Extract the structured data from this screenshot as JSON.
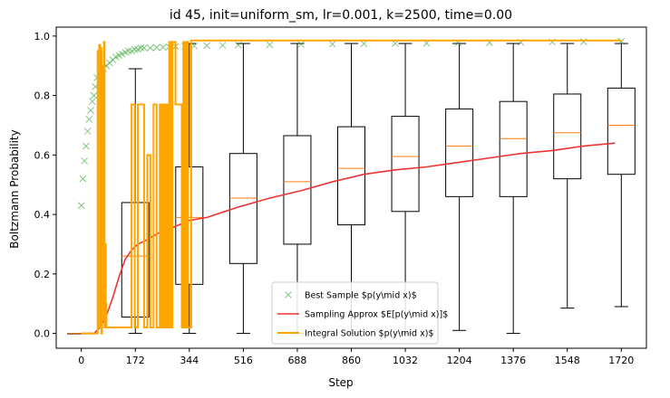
{
  "chart_data": {
    "type": "box",
    "title": "id 45, init=uniform_sm, lr=0.001, k=2500, time=0.00",
    "xlabel": "Step",
    "ylabel": "Boltzmann Probability",
    "xlim": [
      -80,
      1800
    ],
    "ylim": [
      -0.05,
      1.03
    ],
    "xticks": [
      0,
      172,
      344,
      516,
      688,
      860,
      1032,
      1204,
      1376,
      1548,
      1720
    ],
    "xtick_labels": [
      "0",
      "172",
      "344",
      "516",
      "688",
      "860",
      "1032",
      "1204",
      "1376",
      "1548",
      "1720"
    ],
    "yticks": [
      0.0,
      0.2,
      0.4,
      0.6,
      0.8,
      1.0
    ],
    "ytick_labels": [
      "0.0",
      "0.2",
      "0.4",
      "0.6",
      "0.8",
      "1.0"
    ],
    "grid": false,
    "legend_placement": "lower-center",
    "boxes": [
      {
        "x": 0,
        "whislo": 0.0,
        "q1": 0.0,
        "med": 0.0,
        "q3": 0.0,
        "whishi": 0.0
      },
      {
        "x": 172,
        "whislo": 0.0,
        "q1": 0.055,
        "med": 0.26,
        "q3": 0.44,
        "whishi": 0.89
      },
      {
        "x": 344,
        "whislo": 0.0,
        "q1": 0.165,
        "med": 0.39,
        "q3": 0.56,
        "whishi": 0.975
      },
      {
        "x": 516,
        "whislo": 0.0,
        "q1": 0.235,
        "med": 0.455,
        "q3": 0.605,
        "whishi": 0.975
      },
      {
        "x": 688,
        "whislo": 0.0,
        "q1": 0.3,
        "med": 0.51,
        "q3": 0.665,
        "whishi": 0.975
      },
      {
        "x": 860,
        "whislo": 0.0,
        "q1": 0.365,
        "med": 0.555,
        "q3": 0.695,
        "whishi": 0.975
      },
      {
        "x": 1032,
        "whislo": 0.0,
        "q1": 0.41,
        "med": 0.595,
        "q3": 0.73,
        "whishi": 0.975
      },
      {
        "x": 1204,
        "whislo": 0.01,
        "q1": 0.46,
        "med": 0.63,
        "q3": 0.755,
        "whishi": 0.975
      },
      {
        "x": 1376,
        "whislo": 0.0,
        "q1": 0.46,
        "med": 0.655,
        "q3": 0.78,
        "whishi": 0.975
      },
      {
        "x": 1548,
        "whislo": 0.085,
        "q1": 0.52,
        "med": 0.675,
        "q3": 0.805,
        "whishi": 0.975
      },
      {
        "x": 1720,
        "whislo": 0.09,
        "q1": 0.535,
        "med": 0.7,
        "q3": 0.825,
        "whishi": 0.975
      }
    ],
    "box_colors": {
      "box": "#000000",
      "median": "#ff7f0e"
    },
    "series": [
      {
        "name": "Best Sample $p(y\\mid x)$",
        "kind": "scatter",
        "marker": "x",
        "color": "#2ca02c",
        "x": [
          0,
          5,
          10,
          15,
          20,
          25,
          30,
          35,
          40,
          45,
          50,
          60,
          70,
          80,
          90,
          100,
          110,
          120,
          130,
          140,
          150,
          160,
          170,
          180,
          190,
          200,
          220,
          240,
          260,
          280,
          300,
          330,
          360,
          400,
          450,
          500,
          600,
          700,
          800,
          900,
          1000,
          1100,
          1200,
          1300,
          1400,
          1500,
          1600,
          1720
        ],
        "y": [
          0.43,
          0.52,
          0.58,
          0.63,
          0.68,
          0.72,
          0.75,
          0.78,
          0.8,
          0.83,
          0.86,
          0.88,
          0.89,
          0.9,
          0.91,
          0.92,
          0.93,
          0.935,
          0.94,
          0.945,
          0.95,
          0.95,
          0.955,
          0.955,
          0.96,
          0.96,
          0.96,
          0.962,
          0.962,
          0.964,
          0.965,
          0.966,
          0.967,
          0.968,
          0.969,
          0.97,
          0.971,
          0.972,
          0.973,
          0.974,
          0.975,
          0.976,
          0.977,
          0.978,
          0.979,
          0.98,
          0.981,
          0.982
        ]
      },
      {
        "name": "Sampling Approx $E[p(y\\mid x)]$",
        "kind": "line",
        "color": "#ee3333",
        "x": [
          0,
          40,
          60,
          80,
          100,
          120,
          140,
          160,
          180,
          200,
          250,
          300,
          344,
          400,
          500,
          600,
          700,
          800,
          900,
          1000,
          1100,
          1200,
          1300,
          1400,
          1500,
          1600,
          1700
        ],
        "y": [
          0.0,
          0.0,
          0.02,
          0.06,
          0.12,
          0.19,
          0.25,
          0.28,
          0.3,
          0.31,
          0.34,
          0.36,
          0.38,
          0.39,
          0.425,
          0.455,
          0.48,
          0.51,
          0.535,
          0.55,
          0.56,
          0.575,
          0.59,
          0.605,
          0.615,
          0.63,
          0.64
        ]
      },
      {
        "name": "Integral Solution $p(y\\mid x)$",
        "kind": "step",
        "color": "#ffa500",
        "x": [
          0,
          50,
          52,
          55,
          57,
          60,
          62,
          64,
          66,
          70,
          72,
          74,
          76,
          78,
          80,
          90,
          100,
          110,
          120,
          130,
          140,
          150,
          160,
          170,
          180,
          190,
          200,
          210,
          220,
          230,
          240,
          250,
          255,
          260,
          265,
          270,
          275,
          280,
          285,
          290,
          300,
          320,
          325,
          330,
          335,
          340,
          350,
          400,
          1720
        ],
        "y": [
          0.0,
          0.0,
          0.95,
          0.02,
          0.97,
          0.02,
          0.96,
          0.0,
          0.9,
          0.05,
          0.98,
          0.02,
          0.3,
          0.1,
          0.02,
          0.02,
          0.02,
          0.02,
          0.02,
          0.02,
          0.02,
          0.02,
          0.77,
          0.02,
          0.77,
          0.77,
          0.02,
          0.6,
          0.02,
          0.77,
          0.02,
          0.77,
          0.02,
          0.77,
          0.02,
          0.77,
          0.02,
          0.98,
          0.02,
          0.98,
          0.77,
          0.02,
          0.98,
          0.02,
          0.98,
          0.02,
          0.985,
          0.985,
          0.985
        ]
      }
    ]
  }
}
